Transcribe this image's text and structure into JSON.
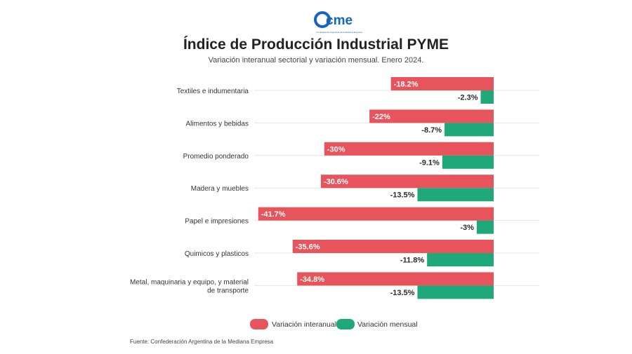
{
  "header": {
    "logo_text": "cme",
    "logo_tagline": "Confederación Argentina de la Mediana Empresa",
    "title": "Índice de Producción Industrial PYME",
    "subtitle": "Variación interanual sectorial y variación mensual. Enero 2024."
  },
  "colors": {
    "interanual": "#e8545b",
    "mensual": "#1fa97a",
    "logo_blue": "#1565c0"
  },
  "chart_data": {
    "type": "bar",
    "orientation": "horizontal",
    "categories": [
      "Textiles e indumentaria",
      "Alimentos y bebidas",
      "Promedio ponderado",
      "Madera y muebles",
      "Papel e impresiones",
      "Quimicos y plasticos",
      "Metal, maquinaria y equipo, y material de transporte"
    ],
    "category_lines": [
      [
        "Textiles e indumentaria"
      ],
      [
        "Alimentos y bebidas"
      ],
      [
        "Promedio ponderado"
      ],
      [
        "Madera y muebles"
      ],
      [
        "Papel e impresiones"
      ],
      [
        "Quimicos y plasticos"
      ],
      [
        "Metal, maquinaria y equipo, y material",
        "de transporte"
      ]
    ],
    "series": [
      {
        "name": "Variación interanual",
        "values": [
          -18.2,
          -22,
          -30,
          -30.6,
          -41.7,
          -35.6,
          -34.8
        ],
        "labels": [
          "-18.2%",
          "-22%",
          "-30%",
          "-30.6%",
          "-41.7%",
          "-35.6%",
          "-34.8%"
        ]
      },
      {
        "name": "Variación mensual",
        "values": [
          -2.3,
          -8.7,
          -9.1,
          -13.5,
          -3,
          -11.8,
          -13.5
        ],
        "labels": [
          "-2.3%",
          "-8.7%",
          "-9.1%",
          "-13.5%",
          "-3%",
          "-11.8%",
          "-13.5%"
        ]
      }
    ],
    "legend_position": "bottom-center",
    "grid": true
  },
  "footer": {
    "source": "Fuente: Confederación Argentina de la Mediana Empresa"
  }
}
